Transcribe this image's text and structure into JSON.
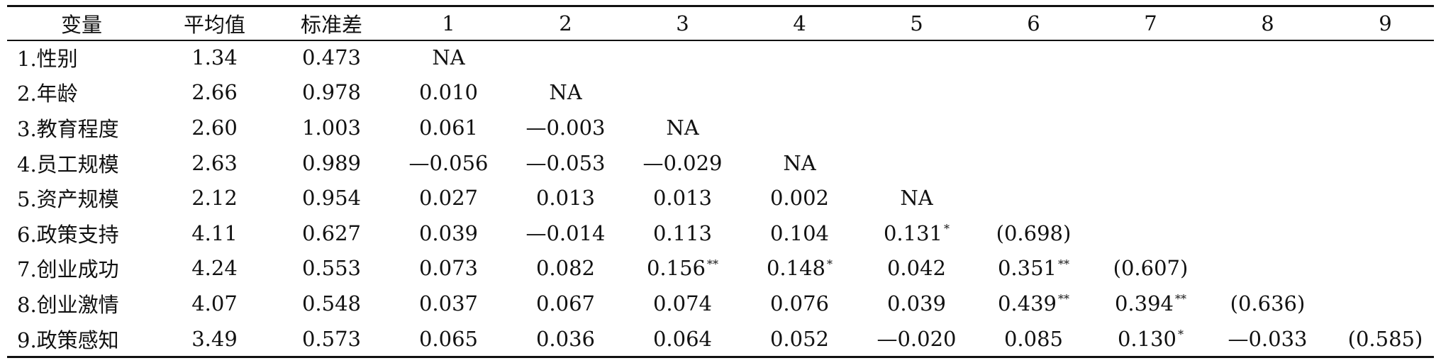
{
  "table": {
    "headers": [
      "变量",
      "平均值",
      "标准差",
      "1",
      "2",
      "3",
      "4",
      "5",
      "6",
      "7",
      "8",
      "9"
    ],
    "rows": [
      {
        "var": "1.性别",
        "mean": "1.34",
        "sd": "0.473",
        "cells": [
          {
            "v": "NA",
            "s": ""
          }
        ]
      },
      {
        "var": "2.年龄",
        "mean": "2.66",
        "sd": "0.978",
        "cells": [
          {
            "v": "0.010",
            "s": ""
          },
          {
            "v": "NA",
            "s": ""
          }
        ]
      },
      {
        "var": "3.教育程度",
        "mean": "2.60",
        "sd": "1.003",
        "cells": [
          {
            "v": "0.061",
            "s": ""
          },
          {
            "v": "—0.003",
            "s": ""
          },
          {
            "v": "NA",
            "s": ""
          }
        ]
      },
      {
        "var": "4.员工规模",
        "mean": "2.63",
        "sd": "0.989",
        "cells": [
          {
            "v": "—0.056",
            "s": ""
          },
          {
            "v": "—0.053",
            "s": ""
          },
          {
            "v": "—0.029",
            "s": ""
          },
          {
            "v": "NA",
            "s": ""
          }
        ]
      },
      {
        "var": "5.资产规模",
        "mean": "2.12",
        "sd": "0.954",
        "cells": [
          {
            "v": "0.027",
            "s": ""
          },
          {
            "v": "0.013",
            "s": ""
          },
          {
            "v": "0.013",
            "s": ""
          },
          {
            "v": "0.002",
            "s": ""
          },
          {
            "v": "NA",
            "s": ""
          }
        ]
      },
      {
        "var": "6.政策支持",
        "mean": "4.11",
        "sd": "0.627",
        "cells": [
          {
            "v": "0.039",
            "s": ""
          },
          {
            "v": "—0.014",
            "s": ""
          },
          {
            "v": "0.113",
            "s": ""
          },
          {
            "v": "0.104",
            "s": ""
          },
          {
            "v": "0.131",
            "s": "*"
          },
          {
            "v": "(0.698)",
            "s": ""
          }
        ]
      },
      {
        "var": "7.创业成功",
        "mean": "4.24",
        "sd": "0.553",
        "cells": [
          {
            "v": "0.073",
            "s": ""
          },
          {
            "v": "0.082",
            "s": ""
          },
          {
            "v": "0.156",
            "s": "**"
          },
          {
            "v": "0.148",
            "s": "*"
          },
          {
            "v": "0.042",
            "s": ""
          },
          {
            "v": "0.351",
            "s": "**"
          },
          {
            "v": "(0.607)",
            "s": ""
          }
        ]
      },
      {
        "var": "8.创业激情",
        "mean": "4.07",
        "sd": "0.548",
        "cells": [
          {
            "v": "0.037",
            "s": ""
          },
          {
            "v": "0.067",
            "s": ""
          },
          {
            "v": "0.074",
            "s": ""
          },
          {
            "v": "0.076",
            "s": ""
          },
          {
            "v": "0.039",
            "s": ""
          },
          {
            "v": "0.439",
            "s": "**"
          },
          {
            "v": "0.394",
            "s": "**"
          },
          {
            "v": "(0.636)",
            "s": ""
          }
        ]
      },
      {
        "var": "9.政策感知",
        "mean": "3.49",
        "sd": "0.573",
        "cells": [
          {
            "v": "0.065",
            "s": ""
          },
          {
            "v": "0.036",
            "s": ""
          },
          {
            "v": "0.064",
            "s": ""
          },
          {
            "v": "0.052",
            "s": ""
          },
          {
            "v": "—0.020",
            "s": ""
          },
          {
            "v": "0.085",
            "s": ""
          },
          {
            "v": "0.130",
            "s": "*"
          },
          {
            "v": "—0.033",
            "s": ""
          },
          {
            "v": "(0.585)",
            "s": ""
          }
        ]
      }
    ]
  }
}
